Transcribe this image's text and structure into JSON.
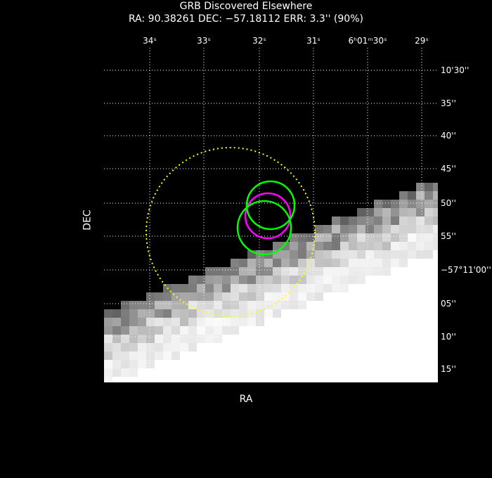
{
  "title": "GRB Discovered Elsewhere",
  "subtitle": "RA: 90.38261   DEC: −57.18112   ERR: 3.3'' (90%)",
  "chart_data": {
    "type": "scatter",
    "xlabel": "RA",
    "ylabel": "DEC",
    "x_ticks": [
      "34ˢ",
      "33ˢ",
      "32ˢ",
      "31ˢ",
      "6ʰ01ᵐ30ˢ",
      "29ˢ"
    ],
    "y_ticks": [
      "10'30''",
      "35''",
      "40''",
      "45''",
      "50''",
      "55''",
      "−57°11'00''",
      "05''",
      "10''",
      "15''"
    ],
    "grid": true,
    "regions": [
      {
        "shape": "circle",
        "color": "#ffff00",
        "style": "dotted"
      },
      {
        "shape": "circle",
        "color": "#ff00ff",
        "style": "solid"
      },
      {
        "shape": "circle",
        "color": "#00ff00",
        "style": "solid"
      },
      {
        "shape": "circle",
        "color": "#00ff00",
        "style": "solid"
      }
    ],
    "colors": {
      "background": "#000000",
      "grid": "#ffffff",
      "frame": "#000000"
    }
  }
}
